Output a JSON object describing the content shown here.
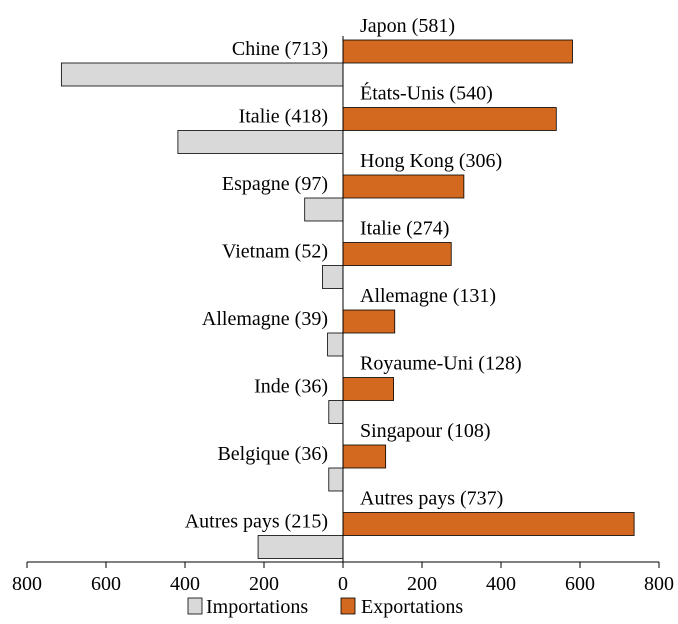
{
  "chart_data": {
    "type": "bar",
    "orientation": "horizontal",
    "title": "",
    "xlabel": "",
    "ylabel": "",
    "xlim": [
      -800,
      800
    ],
    "xticks": [
      -800,
      -600,
      -400,
      -200,
      0,
      200,
      400,
      600,
      800
    ],
    "xtick_labels": [
      "800",
      "600",
      "400",
      "200",
      "0",
      "200",
      "400",
      "600",
      "800"
    ],
    "grid": false,
    "legend": {
      "position": "bottom-center",
      "entries": [
        "Importations",
        "Exportations"
      ]
    },
    "series": [
      {
        "name": "Importations",
        "color": "#d9d9d9",
        "side": "left",
        "labels": [
          "Chine (713)",
          "Italie (418)",
          "Espagne (97)",
          "Vietnam (52)",
          "Allemagne (39)",
          "Inde (36)",
          "Belgique (36)",
          "Autres pays (215)"
        ],
        "values": [
          713,
          418,
          97,
          52,
          39,
          36,
          36,
          215
        ]
      },
      {
        "name": "Exportations",
        "color": "#d2691e",
        "side": "right",
        "labels": [
          "Japon (581)",
          "États-Unis (540)",
          "Hong Kong (306)",
          "Italie (274)",
          "Allemagne (131)",
          "Royaume-Uni (128)",
          "Singapour (108)",
          "Autres pays (737)"
        ],
        "values": [
          581,
          540,
          306,
          274,
          131,
          128,
          108,
          737
        ]
      }
    ]
  }
}
